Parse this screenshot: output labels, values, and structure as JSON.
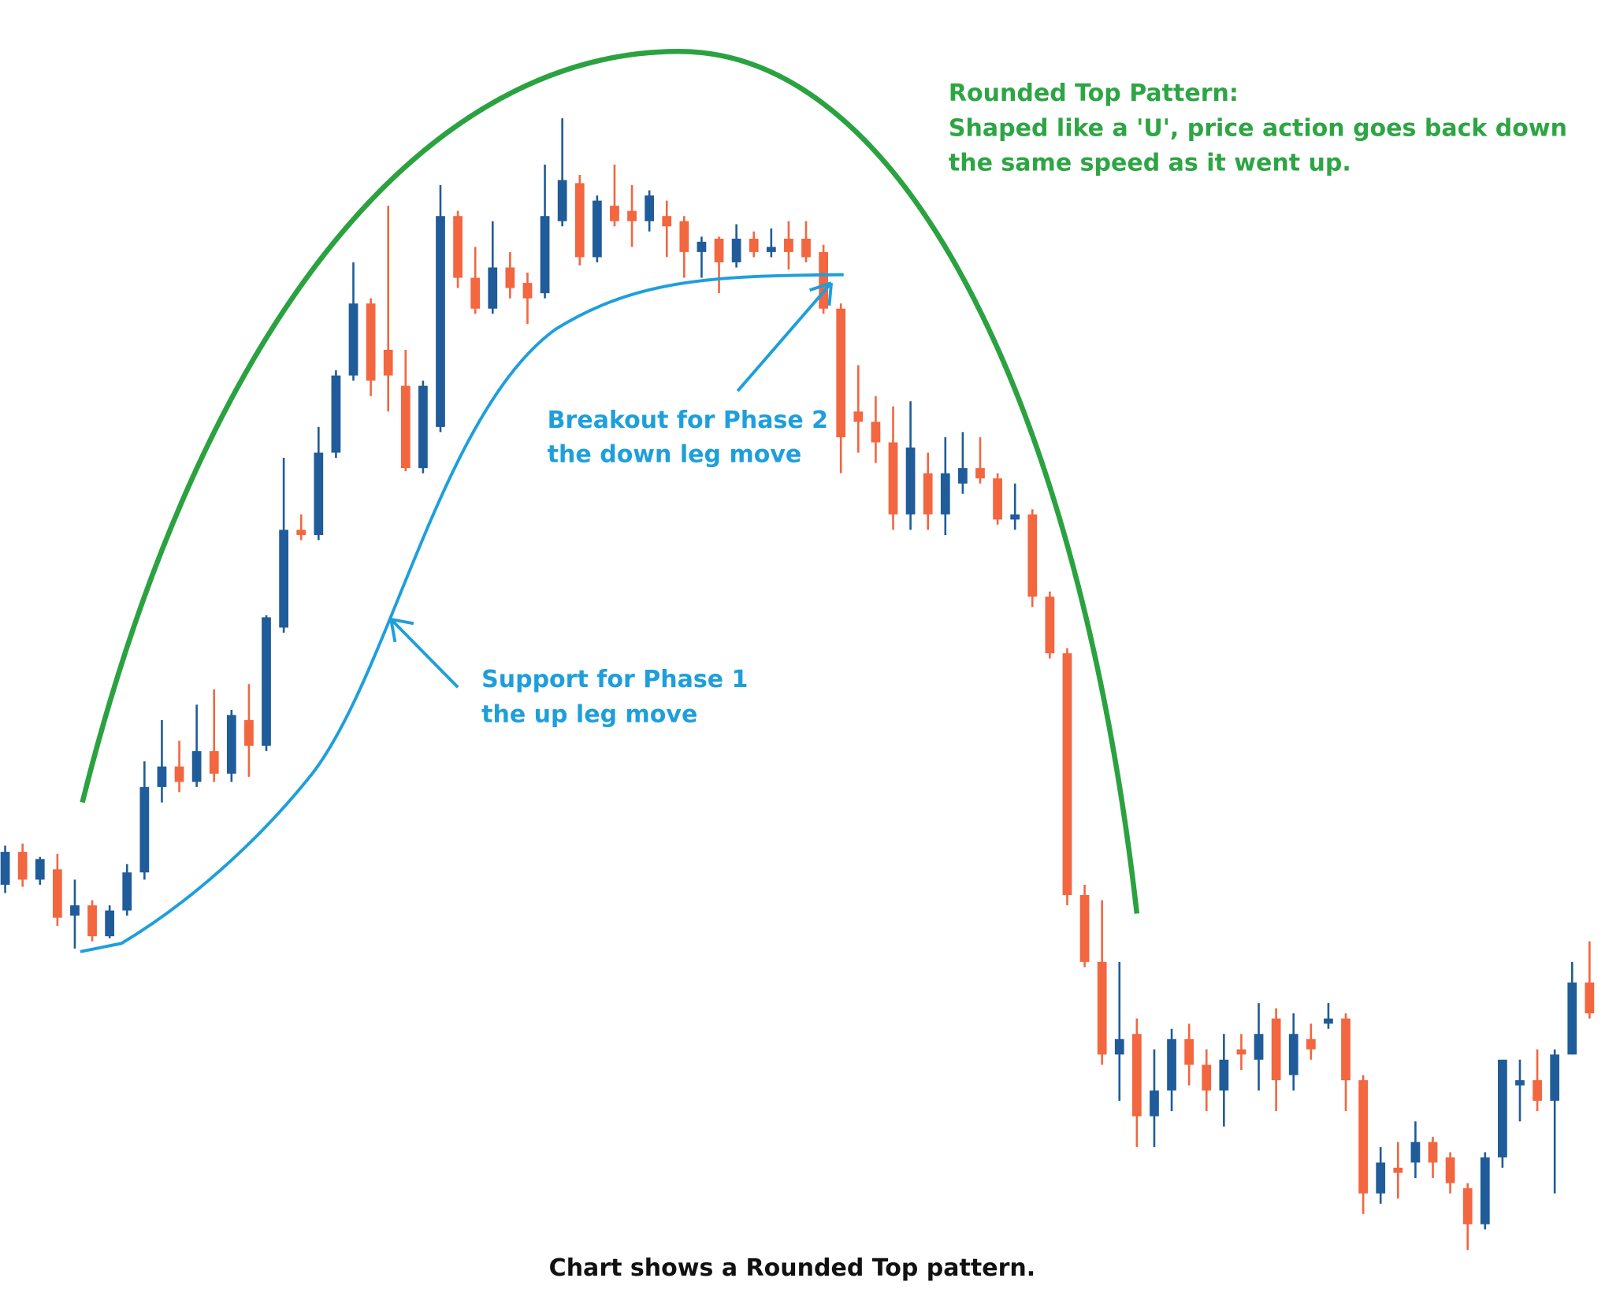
{
  "chart_data": {
    "type": "candlestick",
    "caption": "Chart shows a Rounded Top pattern.",
    "annotations": {
      "pattern": [
        "Rounded Top Pattern:",
        "Shaped like a 'U', price action goes back down",
        "the same speed as it went up."
      ],
      "breakout": [
        "Breakout for Phase 2",
        "the down leg move"
      ],
      "support": [
        "Support for Phase 1",
        "the up leg move"
      ]
    },
    "up_color": "#1f5c99",
    "down_color": "#f26640",
    "ylim": [
      0,
      125
    ],
    "open": [
      39,
      42.2,
      39.5,
      40.5,
      36,
      37,
      34,
      36.5,
      40.2,
      48.5,
      50.5,
      49,
      52,
      49.8,
      55,
      52.5,
      64,
      73.5,
      73,
      81,
      88.5,
      95.5,
      91,
      87.5,
      79.5,
      83.5,
      104,
      98,
      95,
      99,
      97.5,
      96.5,
      103.5,
      107.2,
      100,
      105,
      104.5,
      103.5,
      104,
      103.5,
      100.5,
      101.8,
      99.5,
      101.8,
      100.5,
      101.8,
      101.8,
      100.5,
      95,
      85,
      84,
      82,
      75,
      79,
      75,
      78,
      79.5,
      78.5,
      74.5,
      75,
      67,
      61.5,
      38,
      31.5,
      22.5,
      24.5,
      16.5,
      19,
      24,
      21.5,
      19,
      23,
      22,
      26,
      20.5,
      24,
      25.5,
      26,
      20,
      9,
      11.5,
      12,
      14,
      12.5,
      9.5,
      6,
      12.5,
      19.5,
      20,
      18,
      22.5,
      29.5
    ],
    "high": [
      42.8,
      43,
      41.7,
      42,
      39.5,
      37.5,
      37,
      41,
      51,
      55,
      53,
      56.5,
      58,
      56,
      58.5,
      65.2,
      80.5,
      75,
      83.5,
      89,
      99.5,
      96,
      105,
      91,
      88,
      107,
      104.5,
      101,
      103.5,
      100.5,
      98.5,
      109,
      113.5,
      108,
      106,
      109,
      107,
      106.5,
      105.5,
      104,
      102,
      102,
      103.2,
      102.5,
      102.8,
      103.5,
      103.5,
      101.2,
      95.5,
      89.5,
      86.5,
      85.5,
      86,
      81,
      82.5,
      83,
      82.5,
      79,
      78,
      75.5,
      67.5,
      62,
      39,
      37.5,
      31.5,
      26,
      23,
      25,
      25.5,
      23,
      24.5,
      24.5,
      27.5,
      27,
      26.5,
      25.5,
      27.5,
      26.5,
      20.5,
      13.5,
      14,
      16,
      14.5,
      13,
      10,
      13,
      22,
      22,
      23,
      23,
      31.5,
      33.5
    ],
    "low": [
      38.2,
      38.8,
      39,
      35,
      32.8,
      33.5,
      33.8,
      36,
      39.5,
      47,
      48,
      48.5,
      49,
      49,
      49.5,
      52,
      63.5,
      72.5,
      72.5,
      80.5,
      88,
      86.5,
      85,
      79.2,
      79,
      83,
      97,
      94.5,
      94.5,
      96,
      93.5,
      96,
      103,
      99.2,
      99.5,
      103,
      101,
      102.5,
      100,
      98,
      98,
      96.5,
      99,
      100,
      100,
      98.8,
      99.5,
      94.5,
      79,
      81,
      80,
      73.5,
      73.5,
      73.5,
      73,
      77,
      78,
      74,
      73.5,
      66,
      61,
      37,
      31,
      21.5,
      18,
      13.5,
      13.5,
      17,
      19.5,
      17,
      15.5,
      21,
      19,
      17,
      19,
      22,
      25,
      17,
      7,
      8,
      8.5,
      10.5,
      10.5,
      9,
      3.5,
      5.5,
      11.5,
      16,
      17,
      9,
      22.5,
      26
    ],
    "close": [
      42.2,
      39.5,
      41.5,
      35.8,
      37,
      34,
      36.5,
      40.2,
      48.5,
      50.5,
      49,
      52,
      49.8,
      55.5,
      52.5,
      65,
      73.5,
      73,
      81,
      88.5,
      95.5,
      88,
      88.5,
      79.5,
      87.5,
      104,
      98,
      95,
      99,
      97,
      96,
      104,
      107.5,
      100,
      105.5,
      103.5,
      103.5,
      106,
      103,
      100.5,
      101.5,
      99.5,
      101.8,
      100.5,
      101,
      100.5,
      100,
      95,
      82.5,
      84,
      82,
      75,
      81.5,
      75,
      79,
      79.5,
      78.5,
      74.5,
      75,
      67,
      61.5,
      38,
      31.5,
      22.5,
      24,
      16.5,
      19,
      24,
      21.5,
      19,
      22,
      22.5,
      24.5,
      20,
      24.5,
      23,
      26,
      20,
      9,
      12,
      11,
      14,
      12,
      10,
      6,
      12.5,
      22,
      20,
      18,
      22.5,
      29.5,
      26.5
    ]
  }
}
